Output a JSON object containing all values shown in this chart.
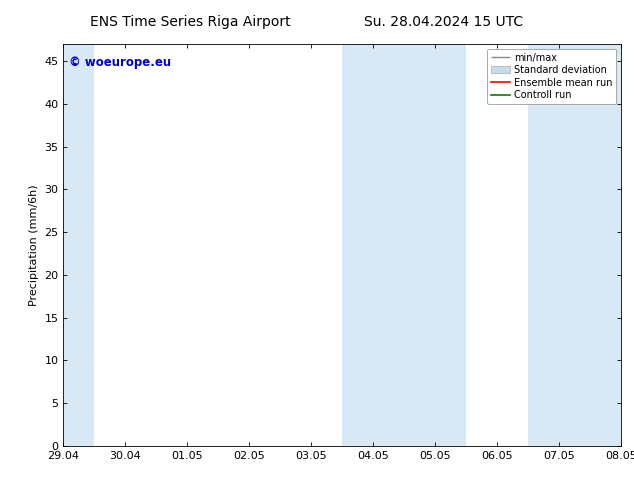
{
  "title_left": "ENS Time Series Riga Airport",
  "title_right": "Su. 28.04.2024 15 UTC",
  "ylabel": "Precipitation (mm/6h)",
  "xlabel_ticks": [
    "29.04",
    "30.04",
    "01.05",
    "02.05",
    "03.05",
    "04.05",
    "05.05",
    "06.05",
    "07.05",
    "08.05"
  ],
  "xlim": [
    0,
    9
  ],
  "ylim": [
    0,
    47
  ],
  "yticks": [
    0,
    5,
    10,
    15,
    20,
    25,
    30,
    35,
    40,
    45
  ],
  "shaded_regions": [
    {
      "x_start": 0.0,
      "x_end": 0.5,
      "color": "#d8e8f4"
    },
    {
      "x_start": 4.5,
      "x_end": 6.5,
      "color": "#d8e8f4"
    },
    {
      "x_start": 7.5,
      "x_end": 9.0,
      "color": "#d8e8f4"
    }
  ],
  "watermark_text": "© woeurope.eu",
  "watermark_color": "#0000cc",
  "legend_entries": [
    {
      "label": "min/max",
      "color": "#aaaaaa"
    },
    {
      "label": "Standard deviation",
      "color": "#c8dcee"
    },
    {
      "label": "Ensemble mean run",
      "color": "red"
    },
    {
      "label": "Controll run",
      "color": "green"
    }
  ],
  "bg_color": "#ffffff",
  "title_fontsize": 10,
  "tick_fontsize": 8,
  "ylabel_fontsize": 8,
  "legend_fontsize": 7
}
